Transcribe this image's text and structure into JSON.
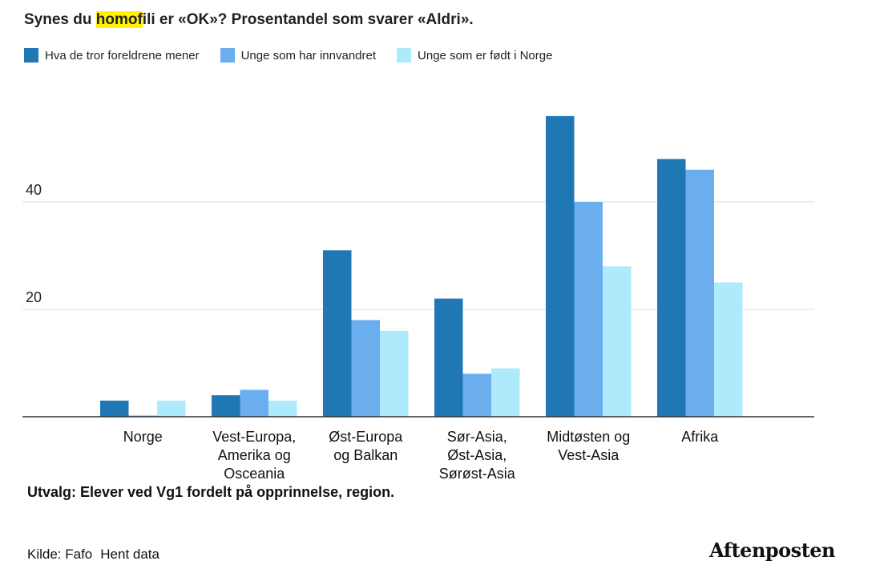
{
  "header": {
    "title_pre": "Synes du ",
    "title_highlight": "homof",
    "title_post": "ili er «OK»? Prosentandel som svarer «Aldri»."
  },
  "footer": {
    "subtitle": "Utvalg: Elever ved Vg1 fordelt på opprinnelse, region.",
    "source_label": "Kilde: Fafo",
    "download_link": "Hent data",
    "logo": "Aftenposten"
  },
  "colors": {
    "series1": "#1f77b4",
    "series2": "#6aaeee",
    "series3": "#aeeafc",
    "gridline": "#dddddd",
    "axis": "#333333"
  },
  "chart_data": {
    "type": "bar",
    "title": "Synes du homofili er «OK»? Prosentandel som svarer «Aldri».",
    "categories": [
      [
        "Norge"
      ],
      [
        "Vest-Europa,",
        "Amerika og",
        "Osceania"
      ],
      [
        "Øst-Europa",
        "og Balkan"
      ],
      [
        "Sør-Asia,",
        "Øst-Asia,",
        "Sørøst-Asia"
      ],
      [
        "Midtøsten og",
        "Vest-Asia"
      ],
      [
        "Afrika"
      ]
    ],
    "series": [
      {
        "name": "Hva de tror foreldrene mener",
        "values": [
          3,
          4,
          31,
          22,
          56,
          48
        ]
      },
      {
        "name": "Unge som har innvandret",
        "values": [
          0,
          5,
          18,
          8,
          40,
          46
        ]
      },
      {
        "name": "Unge som er født i Norge",
        "values": [
          3,
          3,
          16,
          9,
          28,
          25
        ]
      }
    ],
    "yticks": [
      20,
      40
    ],
    "ylim": [
      0,
      60
    ],
    "xlabel": "",
    "ylabel": ""
  }
}
